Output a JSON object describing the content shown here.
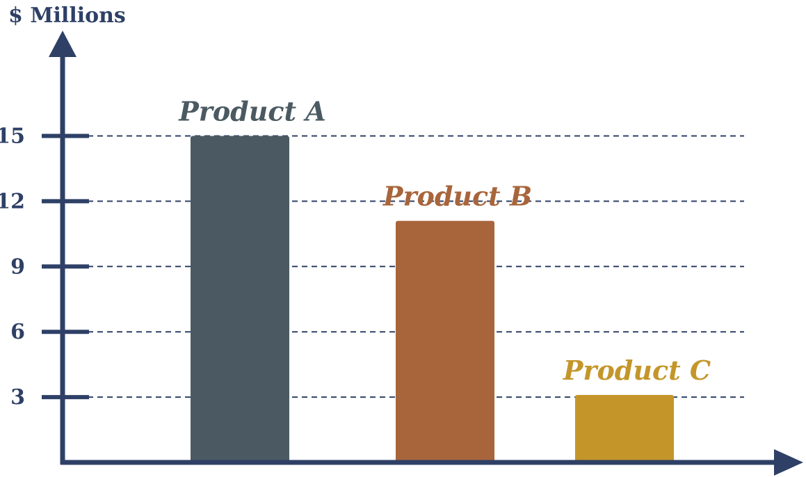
{
  "chart_data": {
    "type": "bar",
    "ylabel": "$ Millions",
    "xlabel": "",
    "ylim": [
      0,
      16.3
    ],
    "yticks": [
      3,
      6,
      9,
      12,
      15
    ],
    "ytick_labels": [
      "3",
      "6",
      "9",
      "12",
      "15"
    ],
    "grid": true,
    "categories": [
      "Product A",
      "Product B",
      "Product C"
    ],
    "values": [
      15,
      11.1,
      3.1
    ],
    "colors": [
      "#4b5a62",
      "#a8653b",
      "#c4962a"
    ],
    "axis_color": "#2e4066"
  }
}
